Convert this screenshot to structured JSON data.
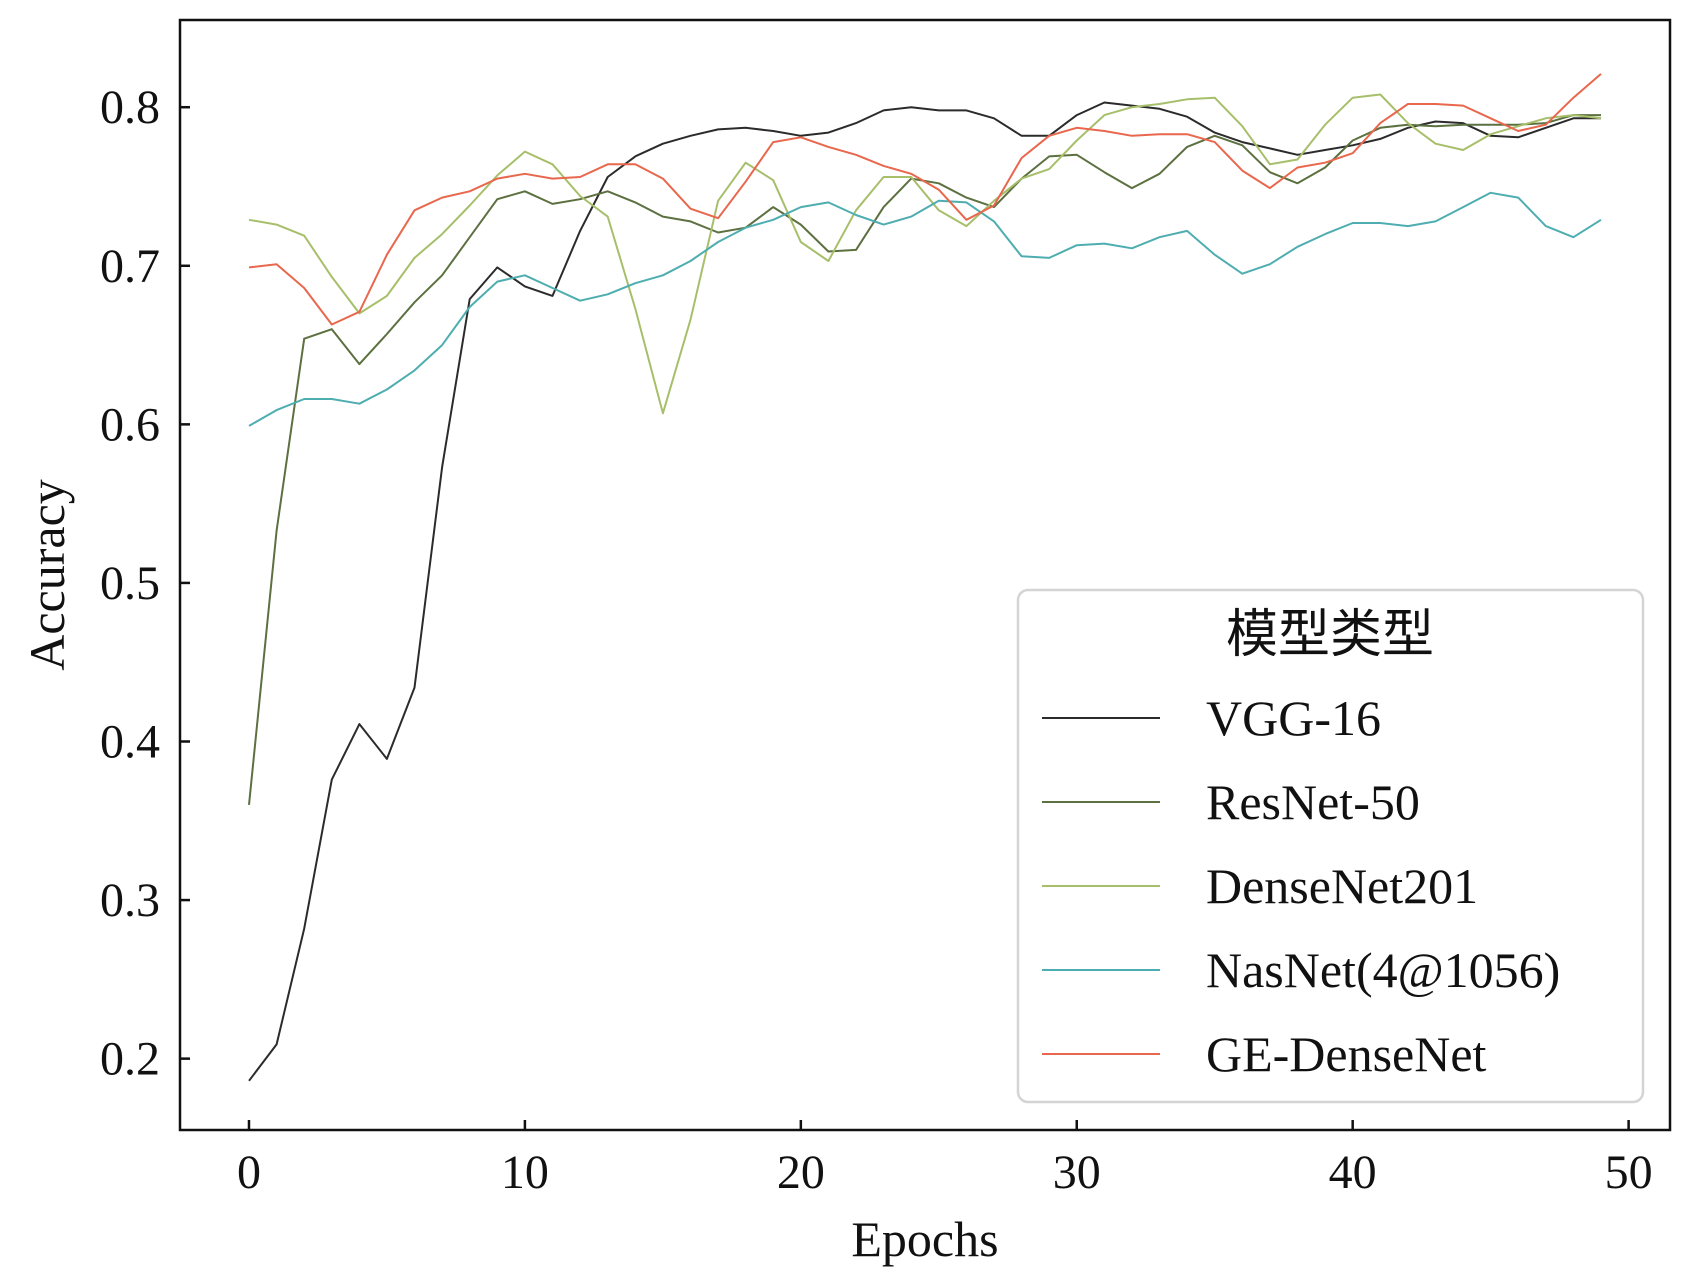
{
  "chart_data": {
    "type": "line",
    "xlabel": "Epochs",
    "ylabel": "Accuracy",
    "xlim": [
      -2.5,
      51.5
    ],
    "ylim": [
      0.155,
      0.855
    ],
    "xticks": [
      0,
      10,
      20,
      30,
      40,
      50
    ],
    "xtick_labels": [
      "0",
      "10",
      "20",
      "30",
      "40",
      "50"
    ],
    "yticks": [
      0.2,
      0.3,
      0.4,
      0.5,
      0.6,
      0.7,
      0.8
    ],
    "ytick_labels": [
      "0.2",
      "0.3",
      "0.4",
      "0.5",
      "0.6",
      "0.7",
      "0.8"
    ],
    "grid": false,
    "legend_position": "lower-right",
    "legend_title": "模型类型",
    "x": [
      0,
      1,
      2,
      3,
      4,
      5,
      6,
      7,
      8,
      9,
      10,
      11,
      12,
      13,
      14,
      15,
      16,
      17,
      18,
      19,
      20,
      21,
      22,
      23,
      24,
      25,
      26,
      27,
      28,
      29,
      30,
      31,
      32,
      33,
      34,
      35,
      36,
      37,
      38,
      39,
      40,
      41,
      42,
      43,
      44,
      45,
      46,
      47,
      48,
      49
    ],
    "series": [
      {
        "name": "VGG-16",
        "color": "#2b2b2b",
        "values": [
          0.186,
          0.209,
          0.282,
          0.376,
          0.411,
          0.389,
          0.434,
          0.573,
          0.679,
          0.699,
          0.687,
          0.681,
          0.722,
          0.756,
          0.769,
          0.777,
          0.782,
          0.786,
          0.787,
          0.785,
          0.782,
          0.784,
          0.79,
          0.798,
          0.8,
          0.798,
          0.798,
          0.793,
          0.782,
          0.782,
          0.795,
          0.803,
          0.801,
          0.799,
          0.794,
          0.784,
          0.778,
          0.774,
          0.77,
          0.773,
          0.776,
          0.78,
          0.787,
          0.791,
          0.79,
          0.782,
          0.781,
          0.787,
          0.793,
          0.793
        ]
      },
      {
        "name": "ResNet-50",
        "color": "#5c7040",
        "values": [
          0.36,
          0.533,
          0.654,
          0.66,
          0.638,
          0.657,
          0.677,
          0.694,
          0.718,
          0.742,
          0.747,
          0.739,
          0.742,
          0.747,
          0.74,
          0.731,
          0.728,
          0.721,
          0.724,
          0.737,
          0.726,
          0.709,
          0.71,
          0.737,
          0.755,
          0.752,
          0.743,
          0.737,
          0.755,
          0.769,
          0.77,
          0.759,
          0.749,
          0.758,
          0.775,
          0.782,
          0.776,
          0.759,
          0.752,
          0.762,
          0.779,
          0.787,
          0.789,
          0.788,
          0.789,
          0.789,
          0.789,
          0.79,
          0.795,
          0.795
        ]
      },
      {
        "name": "DenseNet201",
        "color": "#a7bf6a",
        "values": [
          0.729,
          0.726,
          0.719,
          0.693,
          0.67,
          0.681,
          0.705,
          0.72,
          0.738,
          0.757,
          0.772,
          0.764,
          0.744,
          0.731,
          0.673,
          0.607,
          0.666,
          0.741,
          0.765,
          0.754,
          0.715,
          0.703,
          0.735,
          0.756,
          0.756,
          0.735,
          0.725,
          0.741,
          0.755,
          0.761,
          0.779,
          0.795,
          0.8,
          0.802,
          0.805,
          0.806,
          0.788,
          0.764,
          0.767,
          0.789,
          0.806,
          0.808,
          0.79,
          0.777,
          0.773,
          0.783,
          0.788,
          0.793,
          0.795,
          0.793
        ]
      },
      {
        "name": "NasNet(4@1056)",
        "color": "#4eadb0",
        "values": [
          0.599,
          0.609,
          0.616,
          0.616,
          0.613,
          0.622,
          0.634,
          0.65,
          0.674,
          0.69,
          0.694,
          0.686,
          0.678,
          0.682,
          0.689,
          0.694,
          0.703,
          0.715,
          0.724,
          0.729,
          0.737,
          0.74,
          0.732,
          0.726,
          0.731,
          0.741,
          0.74,
          0.728,
          0.706,
          0.705,
          0.713,
          0.714,
          0.711,
          0.718,
          0.722,
          0.707,
          0.695,
          0.701,
          0.712,
          0.72,
          0.727,
          0.727,
          0.725,
          0.728,
          0.737,
          0.746,
          0.743,
          0.725,
          0.718,
          0.729
        ]
      },
      {
        "name": "GE-DenseNet",
        "color": "#e8674d",
        "values": [
          0.699,
          0.701,
          0.686,
          0.663,
          0.671,
          0.707,
          0.735,
          0.743,
          0.747,
          0.755,
          0.758,
          0.755,
          0.756,
          0.764,
          0.764,
          0.755,
          0.736,
          0.73,
          0.753,
          0.778,
          0.781,
          0.775,
          0.77,
          0.763,
          0.758,
          0.748,
          0.729,
          0.738,
          0.768,
          0.782,
          0.787,
          0.785,
          0.782,
          0.783,
          0.783,
          0.778,
          0.76,
          0.749,
          0.762,
          0.765,
          0.771,
          0.79,
          0.802,
          0.802,
          0.801,
          0.793,
          0.785,
          0.789,
          0.806,
          0.821
        ]
      }
    ]
  }
}
